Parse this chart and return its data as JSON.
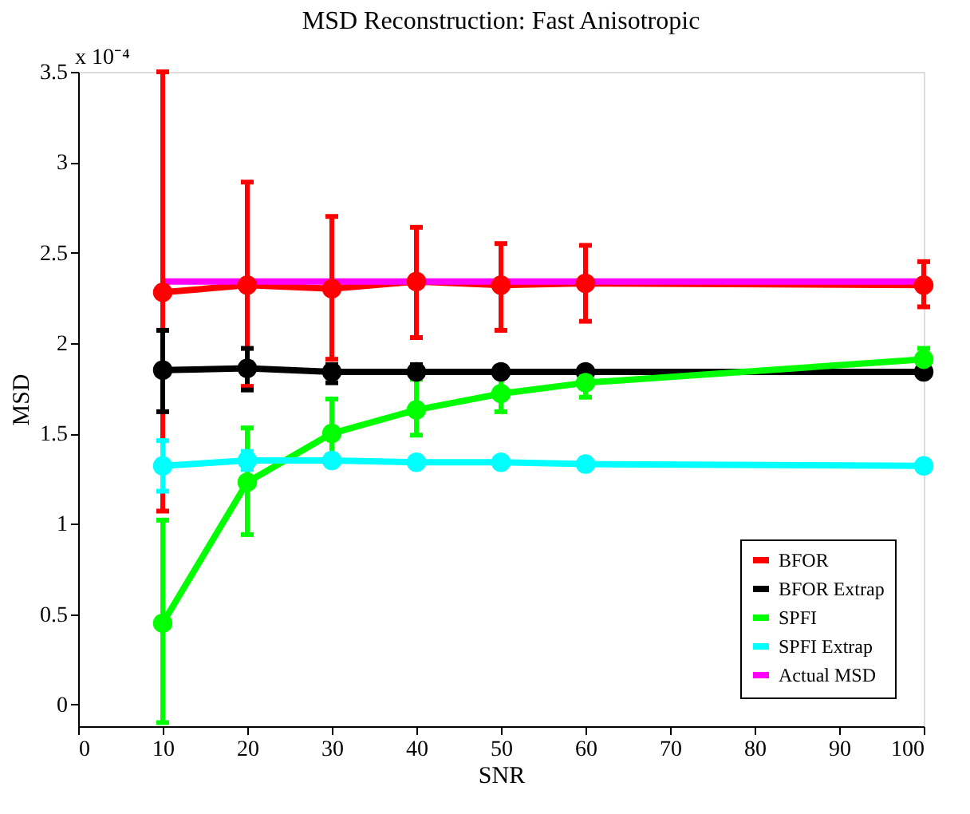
{
  "chart_data": {
    "type": "line",
    "title": "MSD Reconstruction: Fast Anisotropic",
    "xlabel": "SNR",
    "ylabel": "MSD",
    "annotations": [
      "x 10⁻⁴"
    ],
    "x": [
      10,
      20,
      30,
      40,
      50,
      60,
      100
    ],
    "series": [
      {
        "name": "BFOR",
        "color": "#ff0000",
        "marker": "circle",
        "values": [
          2.28,
          2.32,
          2.3,
          2.34,
          2.32,
          2.33,
          2.32
        ],
        "errors": [
          [
            1.07,
            3.5
          ],
          [
            1.76,
            2.89
          ],
          [
            1.91,
            2.7
          ],
          [
            2.03,
            2.64
          ],
          [
            2.07,
            2.55
          ],
          [
            2.12,
            2.54
          ],
          [
            2.2,
            2.45
          ]
        ]
      },
      {
        "name": "BFOR Extrap",
        "color": "#000000",
        "marker": "circle",
        "values": [
          1.85,
          1.86,
          1.84,
          1.84,
          1.84,
          1.84,
          1.84
        ],
        "errors": [
          [
            1.62,
            2.07
          ],
          [
            1.74,
            1.97
          ],
          [
            1.78,
            1.88
          ],
          [
            1.8,
            1.88
          ],
          [
            1.81,
            1.87
          ],
          null,
          null
        ]
      },
      {
        "name": "SPFI",
        "color": "#00ff00",
        "marker": "circle",
        "values": [
          0.45,
          1.23,
          1.5,
          1.63,
          1.72,
          1.78,
          1.91
        ],
        "errors": [
          [
            -0.1,
            1.02
          ],
          [
            0.94,
            1.53
          ],
          [
            1.38,
            1.69
          ],
          [
            1.49,
            1.8
          ],
          [
            1.62,
            1.86
          ],
          [
            1.7,
            1.86
          ],
          [
            1.86,
            1.97
          ]
        ]
      },
      {
        "name": "SPFI Extrap",
        "color": "#00ffff",
        "marker": "circle",
        "values": [
          1.32,
          1.35,
          1.35,
          1.34,
          1.34,
          1.33,
          1.32
        ],
        "errors": [
          [
            1.18,
            1.46
          ],
          [
            1.3,
            1.4
          ],
          null,
          null,
          null,
          null,
          null
        ]
      },
      {
        "name": "Actual MSD",
        "color": "#ff00ff",
        "marker": "none",
        "x": [
          10,
          100
        ],
        "values": [
          2.34,
          2.34
        ]
      }
    ],
    "xlim": [
      0,
      100
    ],
    "xticks": [
      0,
      10,
      20,
      30,
      40,
      50,
      60,
      70,
      80,
      90,
      100
    ],
    "ylim": [
      -0.12,
      3.5
    ],
    "yticks": [
      {
        "value": 0,
        "label": "0"
      },
      0.5,
      {
        "value": 1,
        "label": "1"
      },
      1.5,
      {
        "value": 2,
        "label": "2"
      },
      2.5,
      {
        "value": 3,
        "label": "3"
      },
      3.5
    ],
    "grid": false,
    "legend": "bottom right",
    "line_style": "solid"
  }
}
